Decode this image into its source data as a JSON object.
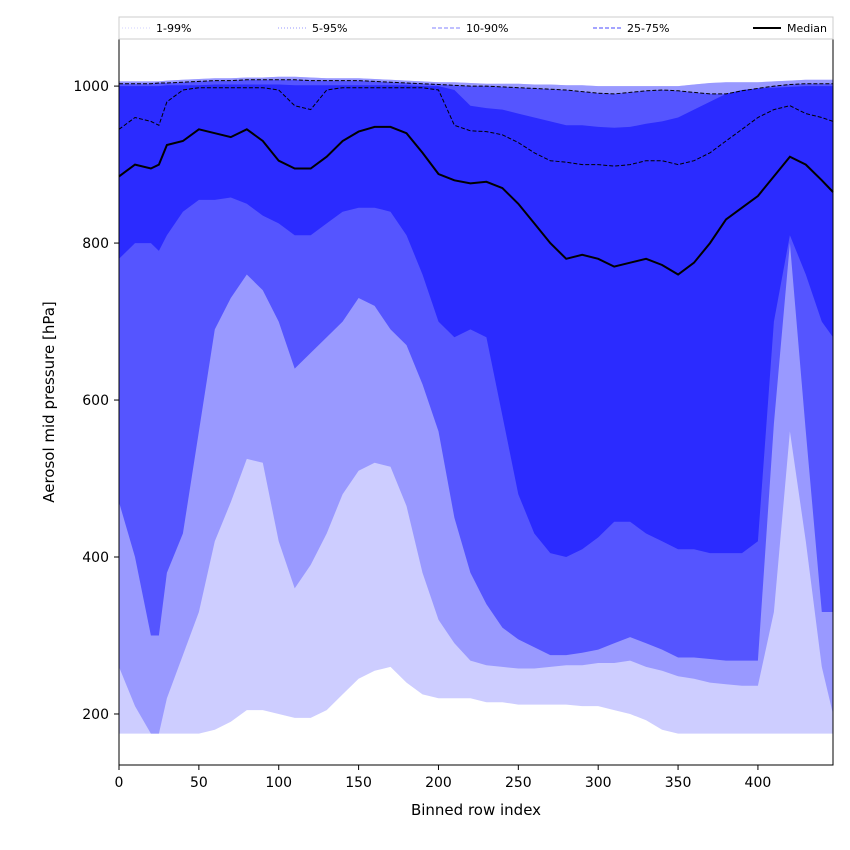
{
  "chart_data": {
    "type": "area",
    "xlabel": "Binned row index",
    "ylabel": "Aerosol mid pressure [hPa]",
    "xlim": [
      0,
      447
    ],
    "ylim": [
      135,
      1060
    ],
    "x_ticks": [
      0,
      50,
      100,
      150,
      200,
      250,
      300,
      350,
      400
    ],
    "y_ticks": [
      200,
      400,
      600,
      800,
      1000
    ],
    "legend_position": "top (horizontal strip above plot)",
    "legend": [
      {
        "label": "1-99%",
        "style": "dotted",
        "color": "#d0d0ff"
      },
      {
        "label": "5-95%",
        "style": "dotted",
        "color": "#9a9aff"
      },
      {
        "label": "10-90%",
        "style": "dashed",
        "color": "#8080ff"
      },
      {
        "label": "25-75%",
        "style": "dashed",
        "color": "#4a4aff"
      },
      {
        "label": "Median",
        "style": "solid",
        "color": "#000000"
      }
    ],
    "x": [
      0,
      10,
      20,
      25,
      30,
      40,
      50,
      60,
      70,
      80,
      90,
      100,
      110,
      120,
      130,
      140,
      150,
      160,
      170,
      180,
      190,
      200,
      210,
      220,
      230,
      240,
      250,
      260,
      270,
      280,
      290,
      300,
      310,
      320,
      330,
      340,
      350,
      360,
      370,
      380,
      390,
      400,
      410,
      420,
      430,
      440,
      447
    ],
    "bands": [
      {
        "name": "1-99%",
        "color": "#cdcdff",
        "lower": [
          175,
          175,
          175,
          175,
          175,
          175,
          175,
          180,
          190,
          205,
          205,
          200,
          195,
          195,
          205,
          225,
          245,
          255,
          260,
          240,
          225,
          220,
          220,
          220,
          215,
          215,
          212,
          212,
          212,
          212,
          210,
          210,
          205,
          200,
          192,
          180,
          175,
          175,
          175,
          175,
          175,
          175,
          175,
          175,
          175,
          175,
          175
        ],
        "upper": [
          1006,
          1006,
          1006,
          1006,
          1007,
          1008,
          1009,
          1010,
          1010,
          1011,
          1011,
          1012,
          1012,
          1011,
          1010,
          1010,
          1010,
          1009,
          1008,
          1007,
          1006,
          1005,
          1005,
          1004,
          1003,
          1003,
          1003,
          1002,
          1002,
          1001,
          1001,
          1000,
          1000,
          1000,
          1000,
          1000,
          1000,
          1002,
          1004,
          1005,
          1005,
          1005,
          1006,
          1007,
          1008,
          1008,
          1008
        ]
      },
      {
        "name": "5-95%",
        "color": "#9999ff",
        "lower": [
          260,
          210,
          175,
          175,
          220,
          275,
          330,
          420,
          470,
          525,
          520,
          420,
          360,
          390,
          430,
          480,
          510,
          520,
          515,
          465,
          380,
          320,
          290,
          268,
          262,
          260,
          258,
          258,
          260,
          262,
          262,
          265,
          265,
          268,
          260,
          255,
          248,
          245,
          240,
          238,
          236,
          236,
          330,
          560,
          420,
          260,
          200
        ]
      },
      {
        "name": "10-90%",
        "color": "#5555ff",
        "lower": [
          470,
          400,
          300,
          300,
          380,
          430,
          560,
          690,
          730,
          760,
          740,
          700,
          640,
          660,
          680,
          700,
          730,
          720,
          690,
          670,
          620,
          560,
          450,
          380,
          340,
          310,
          295,
          285,
          275,
          275,
          278,
          282,
          290,
          298,
          290,
          282,
          272,
          272,
          270,
          268,
          268,
          268,
          570,
          800,
          560,
          330,
          330
        ],
        "upper": [
          1003,
          1003,
          1003,
          1004,
          1004,
          1005,
          1006,
          1007,
          1007,
          1008,
          1008,
          1008,
          1008,
          1007,
          1007,
          1007,
          1007,
          1006,
          1005,
          1004,
          1003,
          1002,
          1001,
          1000,
          1000,
          999,
          998,
          997,
          996,
          995,
          993,
          991,
          990,
          992,
          994,
          995,
          994,
          992,
          990,
          990,
          994,
          997,
          1000,
          1002,
          1003,
          1003,
          1003
        ]
      },
      {
        "name": "25-75%",
        "color": "#2b2bff",
        "lower": [
          780,
          800,
          800,
          790,
          810,
          840,
          855,
          855,
          858,
          850,
          835,
          825,
          810,
          810,
          825,
          840,
          845,
          845,
          840,
          810,
          760,
          700,
          680,
          690,
          680,
          580,
          480,
          430,
          405,
          400,
          410,
          425,
          445,
          445,
          430,
          420,
          410,
          410,
          405,
          405,
          405,
          420,
          700,
          810,
          760,
          700,
          680
        ],
        "upper": [
          1000,
          1000,
          1000,
          1000,
          1001,
          1001,
          1001,
          1002,
          1002,
          1002,
          1002,
          1002,
          1001,
          1001,
          1001,
          1001,
          1001,
          1001,
          1001,
          1001,
          1000,
          1000,
          995,
          975,
          972,
          970,
          965,
          960,
          955,
          950,
          950,
          948,
          947,
          948,
          952,
          955,
          960,
          970,
          980,
          990,
          995,
          997,
          998,
          999,
          1000,
          1000,
          1000
        ]
      }
    ],
    "lines": [
      {
        "name": "10% boundary",
        "style": "dashed",
        "values": [
          1003,
          1003,
          1003,
          1004,
          1004,
          1005,
          1006,
          1007,
          1007,
          1008,
          1008,
          1008,
          1008,
          1007,
          1007,
          1007,
          1007,
          1006,
          1005,
          1004,
          1003,
          1002,
          1001,
          1000,
          1000,
          999,
          998,
          997,
          996,
          995,
          993,
          991,
          990,
          992,
          994,
          995,
          994,
          992,
          990,
          990,
          994,
          997,
          1000,
          1002,
          1003,
          1003,
          1003
        ]
      },
      {
        "name": "25% boundary",
        "style": "dashed",
        "values": [
          945,
          960,
          955,
          950,
          980,
          995,
          998,
          998,
          998,
          998,
          998,
          995,
          975,
          970,
          995,
          998,
          998,
          998,
          998,
          998,
          998,
          995,
          950,
          943,
          942,
          938,
          928,
          915,
          905,
          903,
          900,
          900,
          898,
          900,
          905,
          905,
          900,
          905,
          915,
          930,
          945,
          960,
          970,
          975,
          965,
          960,
          955
        ]
      },
      {
        "name": "Median",
        "style": "solid",
        "values": [
          885,
          900,
          895,
          900,
          925,
          930,
          945,
          940,
          935,
          945,
          930,
          905,
          895,
          895,
          910,
          930,
          942,
          948,
          948,
          940,
          915,
          888,
          880,
          876,
          878,
          870,
          850,
          825,
          800,
          780,
          785,
          780,
          770,
          775,
          780,
          772,
          760,
          775,
          800,
          830,
          845,
          860,
          885,
          910,
          900,
          880,
          865
        ]
      }
    ]
  }
}
